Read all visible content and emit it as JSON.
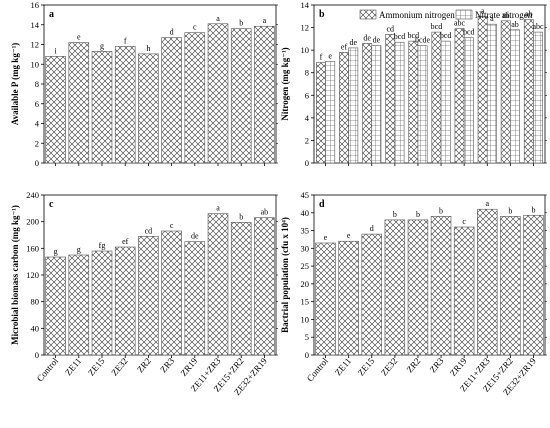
{
  "figure": {
    "categories": [
      "Control",
      "ZE11",
      "ZE15",
      "ZE32",
      "ZR2",
      "ZR3",
      "ZR19",
      "ZE11+ZR3",
      "ZE15+ZR2",
      "ZE32+ZR19"
    ]
  },
  "chart_data": [
    {
      "id": "a",
      "type": "bar",
      "panel_label": "a",
      "ylabel": "Available P (mg kg⁻¹)",
      "ylim": [
        0,
        16
      ],
      "yticks": [
        0,
        2,
        4,
        6,
        8,
        10,
        12,
        14,
        16
      ],
      "grid": false,
      "series": [
        {
          "values": [
            10.8,
            12.2,
            11.3,
            11.8,
            11.05,
            12.7,
            13.2,
            14.1,
            13.6,
            13.85
          ],
          "letters": [
            "i",
            "e",
            "g",
            "f",
            "h",
            "d",
            "c",
            "a",
            "b",
            "a"
          ]
        }
      ]
    },
    {
      "id": "b",
      "type": "bar",
      "panel_label": "b",
      "ylabel": "Nitrogen (mg kg⁻¹)",
      "ylim": [
        0,
        14
      ],
      "yticks": [
        0,
        2,
        4,
        6,
        8,
        10,
        12,
        14
      ],
      "grid": false,
      "legend": {
        "placement": "top",
        "entries": [
          "Ammonium nitrogen",
          "Nitrate nitrogen"
        ]
      },
      "series": [
        {
          "name": "Ammonium nitrogen",
          "values": [
            8.9,
            9.8,
            10.6,
            11.4,
            10.8,
            11.6,
            11.9,
            13.0,
            12.6,
            12.7
          ],
          "letters": [
            "f",
            "ef",
            "de",
            "cd",
            "bcd",
            "bcd",
            "abc",
            "a",
            "ab",
            "ab"
          ]
        },
        {
          "name": "Nitrate nitrogen",
          "values": [
            9.0,
            10.2,
            10.4,
            10.7,
            10.4,
            10.8,
            11.1,
            12.3,
            11.8,
            11.6
          ],
          "letters": [
            "e",
            "de",
            "de",
            "bcd",
            "bcde",
            "bcd",
            "bcd",
            "a",
            "ab",
            "abc"
          ]
        }
      ]
    },
    {
      "id": "c",
      "type": "bar",
      "panel_label": "c",
      "ylabel": "Microbial biomass carbon (mg kg⁻¹)",
      "ylim": [
        0,
        240
      ],
      "yticks": [
        0,
        40,
        80,
        120,
        160,
        200,
        240
      ],
      "grid": false,
      "series": [
        {
          "values": [
            147,
            150,
            156,
            162,
            178,
            186,
            170,
            212,
            199,
            206
          ],
          "letters": [
            "g",
            "g",
            "fg",
            "ef",
            "cd",
            "c",
            "de",
            "a",
            "b",
            "ab"
          ]
        }
      ]
    },
    {
      "id": "d",
      "type": "bar",
      "panel_label": "d",
      "ylabel": "Bactrial population (cfu x 10⁴)",
      "ylim": [
        0,
        45
      ],
      "yticks": [
        0,
        5,
        10,
        15,
        20,
        25,
        30,
        35,
        40,
        45
      ],
      "grid": false,
      "series": [
        {
          "values": [
            31.5,
            32.0,
            34.0,
            38.0,
            38.0,
            39.0,
            36.0,
            41.0,
            39.0,
            39.3
          ],
          "letters": [
            "e",
            "e",
            "d",
            "b",
            "b",
            "b",
            "c",
            "a",
            "b",
            "b"
          ]
        }
      ]
    }
  ]
}
